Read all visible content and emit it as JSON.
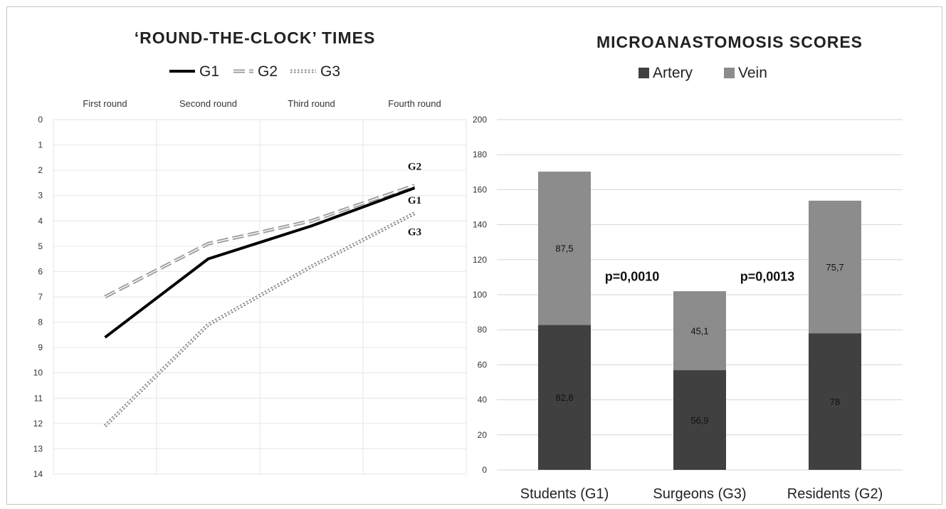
{
  "chart_data": [
    {
      "type": "line",
      "title": "‘ROUND-THE-CLOCK’ TIMES",
      "categories": [
        "First round",
        "Second round",
        "Third round",
        "Fourth round"
      ],
      "y_ticks": [
        "0",
        "1",
        "2",
        "3",
        "4",
        "5",
        "6",
        "7",
        "8",
        "9",
        "10",
        "11",
        "12",
        "13",
        "14"
      ],
      "ylim": [
        0,
        14
      ],
      "y_reversed": true,
      "grid": true,
      "legend_position": "top",
      "series": [
        {
          "name": "G1",
          "values": [
            8.6,
            5.5,
            4.2,
            2.7
          ],
          "color": "#000000",
          "style": "solid"
        },
        {
          "name": "G2",
          "values": [
            7.0,
            4.9,
            4.0,
            2.6
          ],
          "color": "#9a9a9a",
          "style": "double-dashed"
        },
        {
          "name": "G3",
          "values": [
            12.1,
            8.1,
            5.8,
            3.7
          ],
          "color": "#8a8a8a",
          "style": "dotted"
        }
      ],
      "end_labels": [
        "G2",
        "G1",
        "G3"
      ]
    },
    {
      "type": "bar",
      "stacked": true,
      "title": "MICROANASTOMOSIS SCORES",
      "categories": [
        "Students (G1)",
        "Surgeons (G3)",
        "Residents (G2)"
      ],
      "ylim": [
        0,
        200
      ],
      "y_ticks": [
        "0",
        "20",
        "40",
        "60",
        "80",
        "100",
        "120",
        "140",
        "160",
        "180",
        "200"
      ],
      "grid": true,
      "legend_position": "top",
      "series": [
        {
          "name": "Artery",
          "values": [
            82.8,
            56.9,
            78
          ],
          "labels": [
            "82,8",
            "56,9",
            "78"
          ],
          "color": "#404040"
        },
        {
          "name": "Vein",
          "values": [
            87.5,
            45.1,
            75.7
          ],
          "labels": [
            "87,5",
            "45,1",
            "75,7"
          ],
          "color": "#8c8c8c"
        }
      ],
      "annotations": [
        "p=0,0010",
        "p=0,0013"
      ]
    }
  ]
}
